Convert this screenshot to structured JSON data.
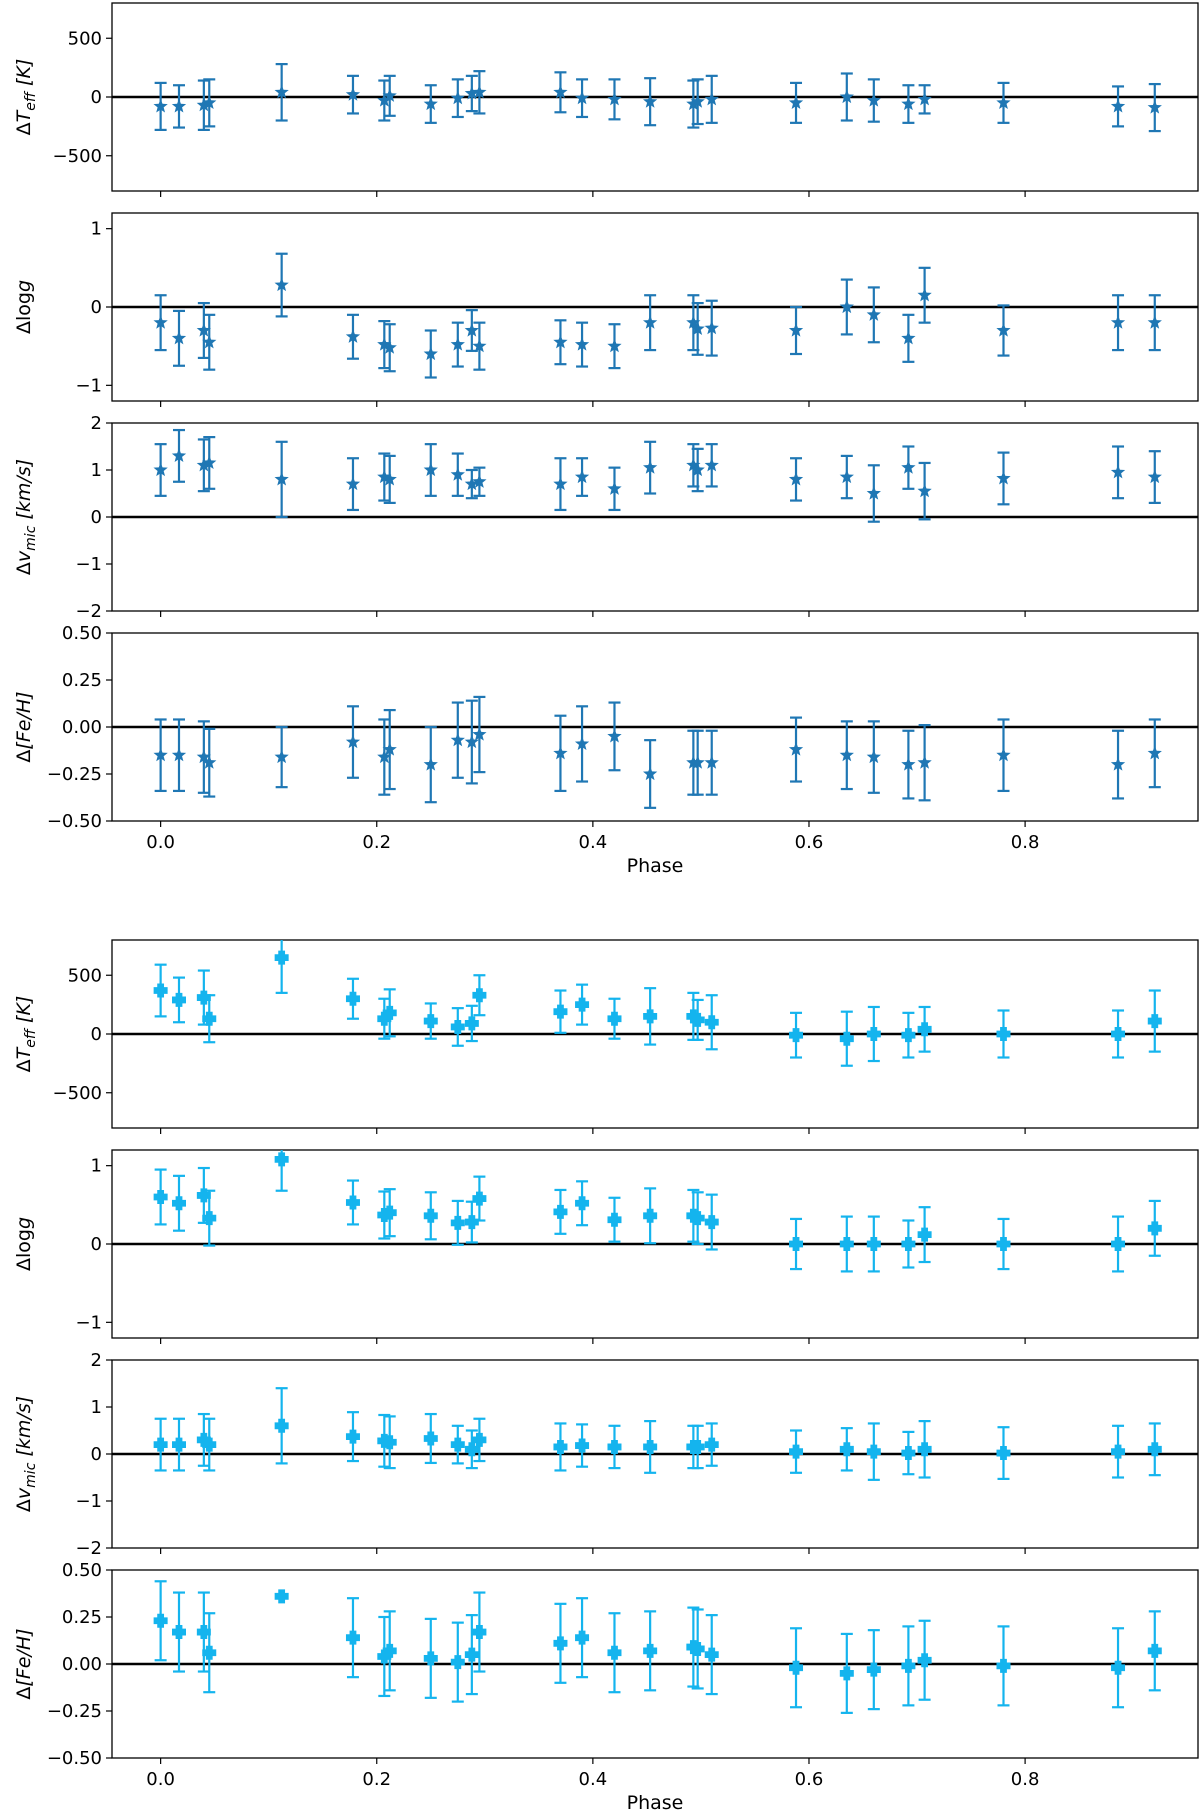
{
  "colors": {
    "top_series": "#1f77b4",
    "bottom_series": "#14b4ee",
    "axis": "#000000",
    "zero_line": "#000000"
  },
  "figure_groups": [
    {
      "name": "top",
      "marker": "star",
      "xlabel": "Phase",
      "xticks": [
        0.0,
        0.2,
        0.4,
        0.6,
        0.8
      ],
      "xtick_labels": [
        "0.0",
        "0.2",
        "0.4",
        "0.6",
        "0.8"
      ]
    },
    {
      "name": "bottom",
      "marker": "cross",
      "xlabel": "Phase",
      "xticks": [
        0.0,
        0.2,
        0.4,
        0.6,
        0.8
      ],
      "xtick_labels": [
        "0.0",
        "0.2",
        "0.4",
        "0.6",
        "0.8"
      ]
    }
  ],
  "chart_data": [
    {
      "type": "scatter",
      "group": "top",
      "panel": "teff",
      "ylabel": "ΔT_eff [K]",
      "ylabel_base": "Δ",
      "ylabel_var": "T",
      "ylabel_sub": "eff",
      "ylabel_unit": " [K]",
      "xlim": [
        -0.045,
        0.96
      ],
      "ylim": [
        -800,
        800
      ],
      "yticks": [
        -500,
        0,
        500
      ],
      "ytick_labels": [
        "−500",
        "0",
        "500"
      ],
      "x": [
        0.0,
        0.017,
        0.04,
        0.045,
        0.112,
        0.178,
        0.207,
        0.212,
        0.25,
        0.275,
        0.288,
        0.295,
        0.37,
        0.39,
        0.42,
        0.453,
        0.493,
        0.497,
        0.51,
        0.588,
        0.635,
        0.66,
        0.692,
        0.707,
        0.78,
        0.886,
        0.92
      ],
      "y": [
        -80,
        -80,
        -70,
        -50,
        40,
        20,
        -30,
        10,
        -60,
        -10,
        30,
        40,
        40,
        -10,
        -20,
        -40,
        -60,
        -40,
        -20,
        -50,
        0,
        -30,
        -60,
        -20,
        -50,
        -80,
        -90
      ],
      "err": [
        200,
        180,
        210,
        200,
        240,
        160,
        170,
        170,
        160,
        160,
        150,
        180,
        170,
        160,
        170,
        200,
        200,
        190,
        200,
        170,
        200,
        180,
        160,
        120,
        170,
        170,
        200
      ]
    },
    {
      "type": "scatter",
      "group": "top",
      "panel": "logg",
      "ylabel": "Δlog g",
      "ylabel_base": "Δlog",
      "ylabel_var": "g",
      "ylabel_sub": "",
      "ylabel_unit": "",
      "xlim": [
        -0.045,
        0.96
      ],
      "ylim": [
        -1.2,
        1.2
      ],
      "yticks": [
        -1,
        0,
        1
      ],
      "ytick_labels": [
        "−1",
        "0",
        "1"
      ],
      "x": [
        0.0,
        0.017,
        0.04,
        0.045,
        0.112,
        0.178,
        0.207,
        0.212,
        0.25,
        0.275,
        0.288,
        0.295,
        0.37,
        0.39,
        0.42,
        0.453,
        0.493,
        0.497,
        0.51,
        0.588,
        0.635,
        0.66,
        0.692,
        0.707,
        0.78,
        0.886,
        0.92
      ],
      "y": [
        -0.2,
        -0.4,
        -0.3,
        -0.45,
        0.28,
        -0.38,
        -0.48,
        -0.52,
        -0.6,
        -0.48,
        -0.3,
        -0.5,
        -0.45,
        -0.48,
        -0.5,
        -0.2,
        -0.2,
        -0.28,
        -0.27,
        -0.3,
        0.0,
        -0.1,
        -0.4,
        0.15,
        -0.3,
        -0.2,
        -0.2
      ],
      "err": [
        0.35,
        0.35,
        0.35,
        0.35,
        0.4,
        0.28,
        0.3,
        0.3,
        0.3,
        0.28,
        0.26,
        0.3,
        0.28,
        0.28,
        0.28,
        0.35,
        0.35,
        0.33,
        0.35,
        0.3,
        0.35,
        0.35,
        0.3,
        0.35,
        0.32,
        0.35,
        0.35
      ]
    },
    {
      "type": "scatter",
      "group": "top",
      "panel": "vmic",
      "ylabel": "Δv_mic [km/s]",
      "ylabel_base": "Δ",
      "ylabel_var": "v",
      "ylabel_sub": "mic",
      "ylabel_unit": " [km/s]",
      "xlim": [
        -0.045,
        0.96
      ],
      "ylim": [
        -2,
        2
      ],
      "yticks": [
        -2,
        -1,
        0,
        1,
        2
      ],
      "ytick_labels": [
        "−2",
        "−1",
        "0",
        "1",
        "2"
      ],
      "x": [
        0.0,
        0.017,
        0.04,
        0.045,
        0.112,
        0.178,
        0.207,
        0.212,
        0.25,
        0.275,
        0.288,
        0.295,
        0.37,
        0.39,
        0.42,
        0.453,
        0.493,
        0.497,
        0.51,
        0.588,
        0.635,
        0.66,
        0.692,
        0.707,
        0.78,
        0.886,
        0.92
      ],
      "y": [
        1.0,
        1.3,
        1.1,
        1.15,
        0.8,
        0.7,
        0.85,
        0.8,
        1.0,
        0.9,
        0.7,
        0.75,
        0.7,
        0.85,
        0.6,
        1.05,
        1.1,
        1.0,
        1.1,
        0.8,
        0.85,
        0.5,
        1.05,
        0.55,
        0.82,
        0.95,
        0.85
      ],
      "err": [
        0.55,
        0.55,
        0.55,
        0.55,
        0.8,
        0.55,
        0.5,
        0.5,
        0.55,
        0.45,
        0.3,
        0.3,
        0.55,
        0.4,
        0.45,
        0.55,
        0.45,
        0.45,
        0.45,
        0.45,
        0.45,
        0.6,
        0.45,
        0.6,
        0.55,
        0.55,
        0.55
      ]
    },
    {
      "type": "scatter",
      "group": "top",
      "panel": "feh",
      "ylabel": "Δ[Fe/H]",
      "ylabel_base": "Δ",
      "ylabel_var": "[Fe/H]",
      "ylabel_sub": "",
      "ylabel_unit": "",
      "xlim": [
        -0.045,
        0.96
      ],
      "ylim": [
        -0.5,
        0.5
      ],
      "yticks": [
        -0.5,
        -0.25,
        0.0,
        0.25,
        0.5
      ],
      "ytick_labels": [
        "−0.50",
        "−0.25",
        "0.00",
        "0.25",
        "0.50"
      ],
      "x": [
        0.0,
        0.017,
        0.04,
        0.045,
        0.112,
        0.178,
        0.207,
        0.212,
        0.25,
        0.275,
        0.288,
        0.295,
        0.37,
        0.39,
        0.42,
        0.453,
        0.493,
        0.497,
        0.51,
        0.588,
        0.635,
        0.66,
        0.692,
        0.707,
        0.78,
        0.886,
        0.92
      ],
      "y": [
        -0.15,
        -0.15,
        -0.16,
        -0.19,
        -0.16,
        -0.08,
        -0.16,
        -0.12,
        -0.2,
        -0.07,
        -0.08,
        -0.04,
        -0.14,
        -0.09,
        -0.05,
        -0.25,
        -0.19,
        -0.19,
        -0.19,
        -0.12,
        -0.15,
        -0.16,
        -0.2,
        -0.19,
        -0.15,
        -0.2,
        -0.14
      ],
      "err": [
        0.19,
        0.19,
        0.19,
        0.18,
        0.16,
        0.19,
        0.2,
        0.21,
        0.2,
        0.2,
        0.22,
        0.2,
        0.2,
        0.2,
        0.18,
        0.18,
        0.17,
        0.17,
        0.17,
        0.17,
        0.18,
        0.19,
        0.18,
        0.2,
        0.19,
        0.18,
        0.18
      ]
    },
    {
      "type": "scatter",
      "group": "bottom",
      "panel": "teff",
      "ylabel": "ΔT_eff [K]",
      "ylabel_base": "Δ",
      "ylabel_var": "T",
      "ylabel_sub": "eff",
      "ylabel_unit": " [K]",
      "xlim": [
        -0.045,
        0.96
      ],
      "ylim": [
        -800,
        800
      ],
      "yticks": [
        -500,
        0,
        500
      ],
      "ytick_labels": [
        "−500",
        "0",
        "500"
      ],
      "x": [
        0.0,
        0.017,
        0.04,
        0.045,
        0.112,
        0.178,
        0.207,
        0.212,
        0.25,
        0.275,
        0.288,
        0.295,
        0.37,
        0.39,
        0.42,
        0.453,
        0.493,
        0.497,
        0.51,
        0.588,
        0.635,
        0.66,
        0.692,
        0.707,
        0.78,
        0.886,
        0.92
      ],
      "y": [
        370,
        290,
        310,
        130,
        650,
        300,
        130,
        180,
        110,
        60,
        90,
        330,
        190,
        250,
        130,
        150,
        150,
        120,
        100,
        -10,
        -40,
        0,
        -10,
        40,
        0,
        0,
        110
      ],
      "err": [
        220,
        190,
        230,
        200,
        300,
        170,
        170,
        200,
        150,
        160,
        150,
        170,
        180,
        170,
        170,
        240,
        200,
        170,
        230,
        190,
        230,
        230,
        190,
        190,
        200,
        200,
        260
      ]
    },
    {
      "type": "scatter",
      "group": "bottom",
      "panel": "logg",
      "ylabel": "Δlog g",
      "ylabel_base": "Δlog",
      "ylabel_var": "g",
      "ylabel_sub": "",
      "ylabel_unit": "",
      "xlim": [
        -0.045,
        0.96
      ],
      "ylim": [
        -1.2,
        1.2
      ],
      "yticks": [
        -1,
        0,
        1
      ],
      "ytick_labels": [
        "−1",
        "0",
        "1"
      ],
      "x": [
        0.0,
        0.017,
        0.04,
        0.045,
        0.112,
        0.178,
        0.207,
        0.212,
        0.25,
        0.275,
        0.288,
        0.295,
        0.37,
        0.39,
        0.42,
        0.453,
        0.493,
        0.497,
        0.51,
        0.588,
        0.635,
        0.66,
        0.692,
        0.707,
        0.78,
        0.886,
        0.92
      ],
      "y": [
        0.6,
        0.52,
        0.62,
        0.33,
        1.08,
        0.53,
        0.37,
        0.4,
        0.36,
        0.27,
        0.28,
        0.58,
        0.41,
        0.52,
        0.31,
        0.36,
        0.36,
        0.33,
        0.28,
        0.0,
        0.0,
        0.0,
        0.0,
        0.12,
        0.0,
        0.0,
        0.2
      ],
      "err": [
        0.35,
        0.35,
        0.35,
        0.35,
        0.4,
        0.28,
        0.3,
        0.3,
        0.3,
        0.28,
        0.26,
        0.28,
        0.28,
        0.28,
        0.28,
        0.35,
        0.33,
        0.33,
        0.35,
        0.32,
        0.35,
        0.35,
        0.3,
        0.35,
        0.32,
        0.35,
        0.35
      ]
    },
    {
      "type": "scatter",
      "group": "bottom",
      "panel": "vmic",
      "ylabel": "Δv_mic [km/s]",
      "ylabel_base": "Δ",
      "ylabel_var": "v",
      "ylabel_sub": "mic",
      "ylabel_unit": " [km/s]",
      "xlim": [
        -0.045,
        0.96
      ],
      "ylim": [
        -2,
        2
      ],
      "yticks": [
        -2,
        -1,
        0,
        1,
        2
      ],
      "ytick_labels": [
        "−2",
        "−1",
        "0",
        "1",
        "2"
      ],
      "x": [
        0.0,
        0.017,
        0.04,
        0.045,
        0.112,
        0.178,
        0.207,
        0.212,
        0.25,
        0.275,
        0.288,
        0.295,
        0.37,
        0.39,
        0.42,
        0.453,
        0.493,
        0.497,
        0.51,
        0.588,
        0.635,
        0.66,
        0.692,
        0.707,
        0.78,
        0.886,
        0.92
      ],
      "y": [
        0.2,
        0.2,
        0.3,
        0.2,
        0.6,
        0.37,
        0.28,
        0.25,
        0.33,
        0.2,
        0.1,
        0.3,
        0.15,
        0.18,
        0.15,
        0.15,
        0.15,
        0.15,
        0.2,
        0.05,
        0.1,
        0.05,
        0.02,
        0.1,
        0.02,
        0.05,
        0.1
      ],
      "err": [
        0.55,
        0.55,
        0.55,
        0.55,
        0.8,
        0.52,
        0.55,
        0.55,
        0.52,
        0.4,
        0.4,
        0.45,
        0.5,
        0.45,
        0.45,
        0.55,
        0.45,
        0.45,
        0.45,
        0.45,
        0.45,
        0.6,
        0.45,
        0.6,
        0.55,
        0.55,
        0.55
      ]
    },
    {
      "type": "scatter",
      "group": "bottom",
      "panel": "feh",
      "ylabel": "Δ[Fe/H]",
      "ylabel_base": "Δ",
      "ylabel_var": "[Fe/H]",
      "ylabel_sub": "",
      "ylabel_unit": "",
      "xlim": [
        -0.045,
        0.96
      ],
      "ylim": [
        -0.5,
        0.5
      ],
      "yticks": [
        -0.5,
        -0.25,
        0.0,
        0.25,
        0.5
      ],
      "ytick_labels": [
        "−0.50",
        "−0.25",
        "0.00",
        "0.25",
        "0.50"
      ],
      "x": [
        0.0,
        0.017,
        0.04,
        0.045,
        0.112,
        0.178,
        0.207,
        0.212,
        0.25,
        0.275,
        0.288,
        0.295,
        0.37,
        0.39,
        0.42,
        0.453,
        0.493,
        0.497,
        0.51,
        0.588,
        0.635,
        0.66,
        0.692,
        0.707,
        0.78,
        0.886,
        0.92
      ],
      "y": [
        0.23,
        0.17,
        0.17,
        0.06,
        0.36,
        0.14,
        0.04,
        0.07,
        0.03,
        0.01,
        0.05,
        0.17,
        0.11,
        0.14,
        0.06,
        0.07,
        0.09,
        0.08,
        0.05,
        -0.02,
        -0.05,
        -0.03,
        -0.01,
        0.02,
        -0.01,
        -0.02,
        0.07
      ],
      "err": [
        0.21,
        0.21,
        0.21,
        0.21,
        0.0,
        0.21,
        0.21,
        0.21,
        0.21,
        0.21,
        0.21,
        0.21,
        0.21,
        0.21,
        0.21,
        0.21,
        0.21,
        0.21,
        0.21,
        0.21,
        0.21,
        0.21,
        0.21,
        0.21,
        0.21,
        0.21,
        0.21
      ]
    }
  ]
}
